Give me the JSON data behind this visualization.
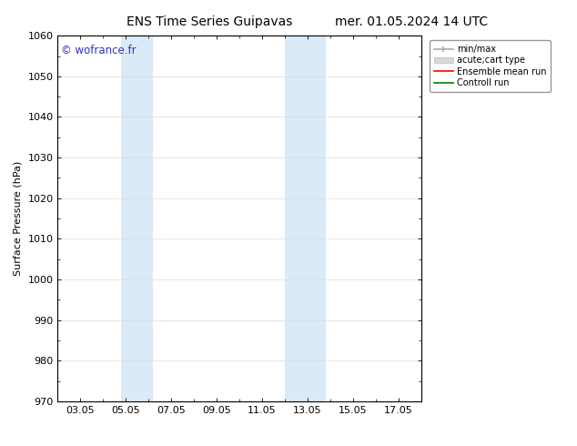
{
  "title_left": "ENS Time Series Guipavas",
  "title_right": "mer. 01.05.2024 14 UTC",
  "ylabel": "Surface Pressure (hPa)",
  "ylim": [
    970,
    1060
  ],
  "yticks": [
    970,
    980,
    990,
    1000,
    1010,
    1020,
    1030,
    1040,
    1050,
    1060
  ],
  "xtick_labels": [
    "03.05",
    "05.05",
    "07.05",
    "09.05",
    "11.05",
    "13.05",
    "15.05",
    "17.05"
  ],
  "xtick_positions": [
    2,
    4,
    6,
    8,
    10,
    12,
    14,
    16
  ],
  "xmin": 1,
  "xmax": 17,
  "shaded_regions": [
    {
      "xmin": 3.8,
      "xmax": 5.2,
      "color": "#daeaf7"
    },
    {
      "xmin": 11.0,
      "xmax": 12.8,
      "color": "#daeaf7"
    }
  ],
  "watermark": "© wofrance.fr",
  "watermark_color": "#3333bb",
  "legend_entries": [
    {
      "label": "min/max",
      "color": "#aaaaaa",
      "lw": 1.2
    },
    {
      "label": "acute;cart type",
      "color": "#cccccc",
      "lw": 6
    },
    {
      "label": "Ensemble mean run",
      "color": "red",
      "lw": 1.2
    },
    {
      "label": "Controll run",
      "color": "green",
      "lw": 1.2
    }
  ],
  "bg_color": "#ffffff",
  "title_fontsize": 10,
  "axis_fontsize": 8,
  "tick_fontsize": 8
}
